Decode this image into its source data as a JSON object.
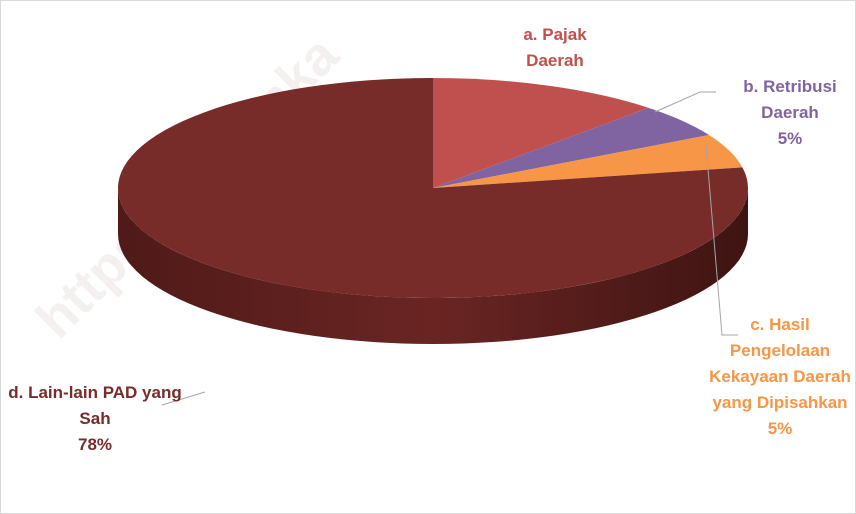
{
  "chart_data": {
    "type": "pie",
    "watermark": "https://koltimka",
    "categories": [
      "a. Pajak Daerah",
      "b. Retribusi Daerah",
      "c. Hasil Pengelolaan Kekayaan Daerah yang Dipisahkan",
      "d. Lain-lain PAD yang Sah"
    ],
    "values": [
      12,
      5,
      5,
      78
    ],
    "value_labels": [
      null,
      "5%",
      "5%",
      "78%"
    ],
    "colors": [
      "#c0504d",
      "#8064a2",
      "#f79646",
      "#772c2a"
    ]
  }
}
